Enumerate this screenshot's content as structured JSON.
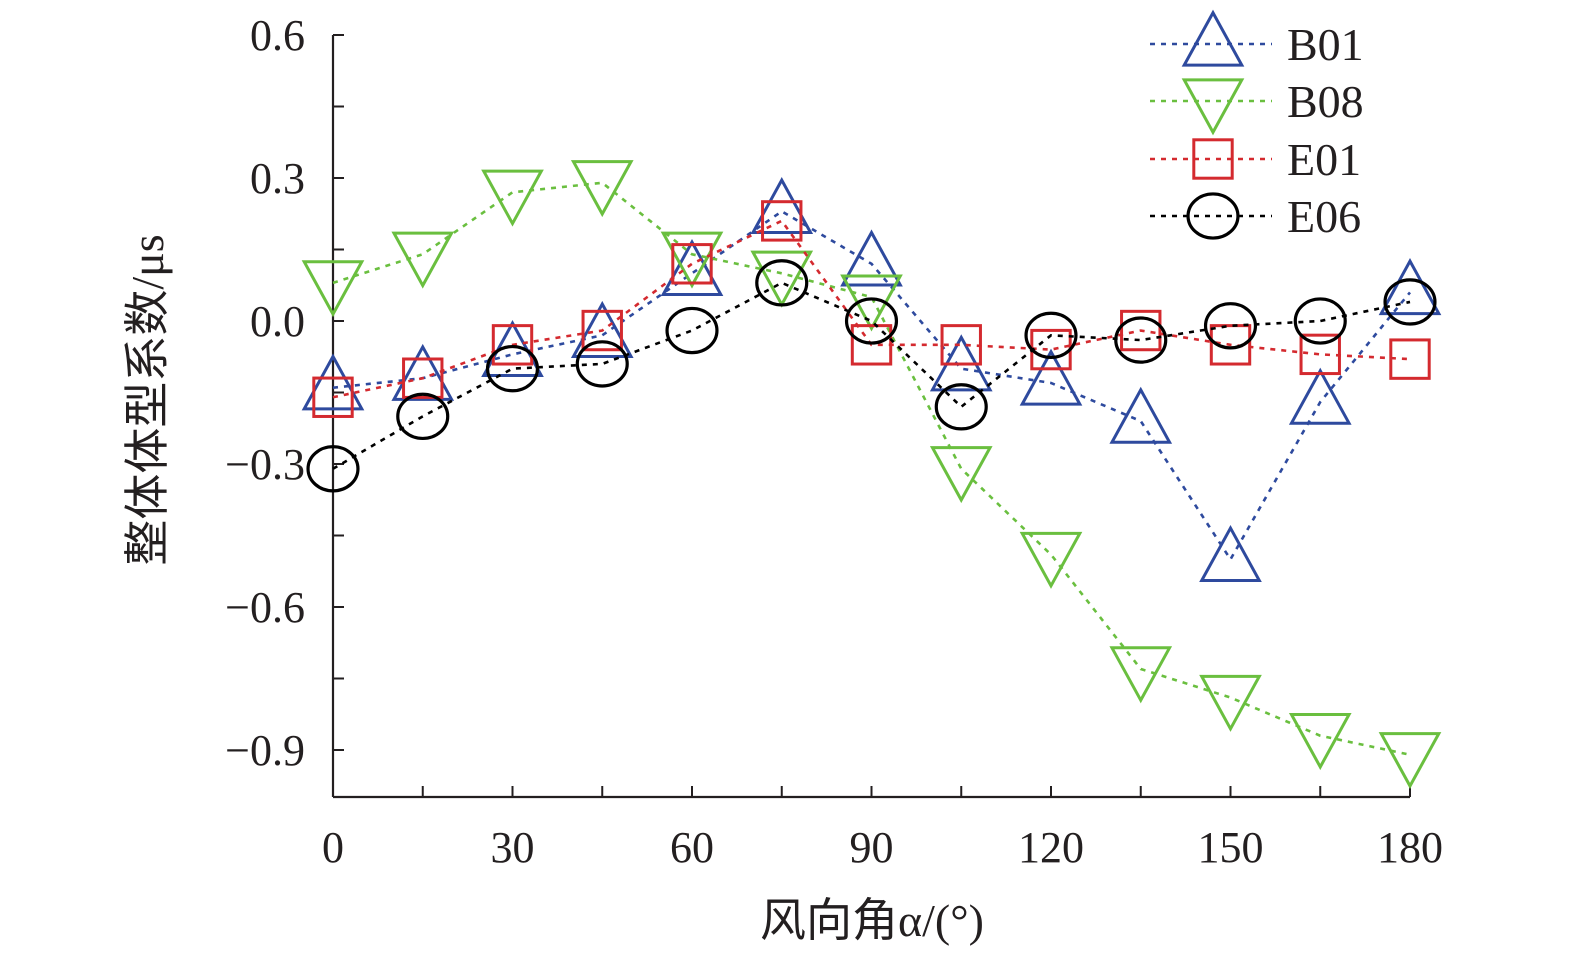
{
  "chart_data": {
    "type": "line",
    "x": [
      0,
      15,
      30,
      45,
      60,
      75,
      90,
      105,
      120,
      135,
      150,
      165,
      180
    ],
    "xlim": [
      0,
      180
    ],
    "ylim": [
      -1.0,
      0.6
    ],
    "x_ticks": [
      "0",
      "30",
      "60",
      "90",
      "120",
      "150",
      "180"
    ],
    "y_ticks": [
      "0.6",
      "0.3",
      "0.0",
      "−0.3",
      "−0.6",
      "−0.9"
    ],
    "xlabel": "风向角α/(°)",
    "ylabel": "整体体型系数/μs",
    "legend_position": "top-right",
    "grid": false,
    "series": [
      {
        "name": "B01",
        "marker": "triangle-up",
        "color": "#2e4a9e",
        "values": [
          -0.14,
          -0.12,
          -0.07,
          -0.03,
          0.1,
          0.23,
          0.12,
          -0.1,
          -0.13,
          -0.21,
          -0.5,
          -0.17,
          0.06
        ]
      },
      {
        "name": "B08",
        "marker": "triangle-down",
        "color": "#6abf3f",
        "values": [
          0.08,
          0.14,
          0.27,
          0.29,
          0.14,
          0.1,
          0.05,
          -0.31,
          -0.49,
          -0.73,
          -0.79,
          -0.87,
          -0.91
        ]
      },
      {
        "name": "E01",
        "marker": "square",
        "color": "#d42a2f",
        "values": [
          -0.16,
          -0.12,
          -0.05,
          -0.02,
          0.12,
          0.21,
          -0.05,
          -0.05,
          -0.06,
          -0.02,
          -0.05,
          -0.07,
          -0.08
        ]
      },
      {
        "name": "E06",
        "marker": "circle",
        "color": "#000000",
        "values": [
          -0.31,
          -0.2,
          -0.1,
          -0.09,
          -0.02,
          0.08,
          0.0,
          -0.18,
          -0.03,
          -0.04,
          -0.01,
          0.0,
          0.04
        ]
      }
    ]
  }
}
